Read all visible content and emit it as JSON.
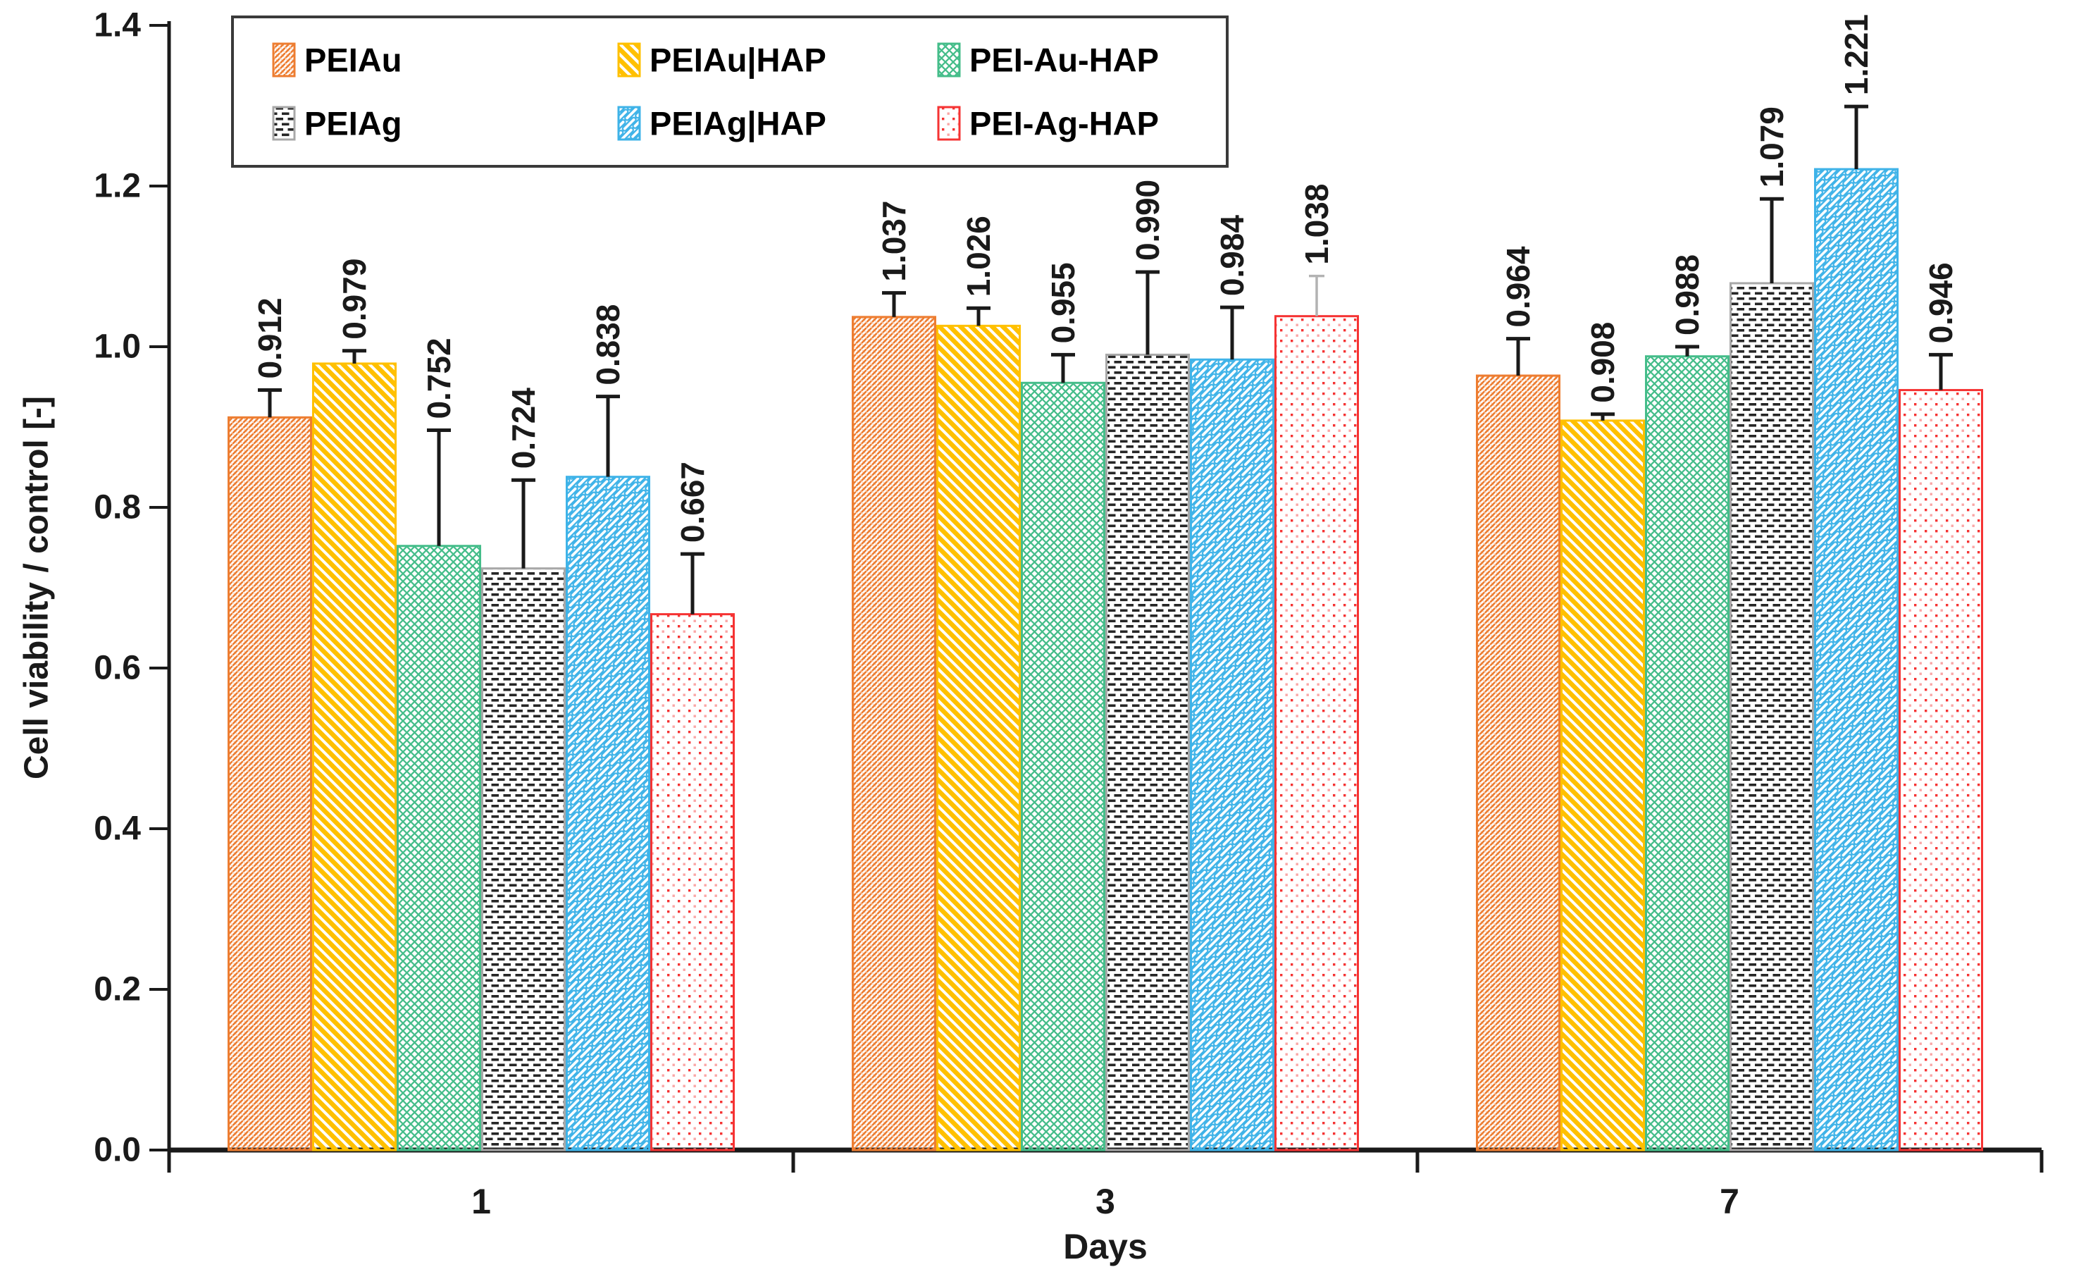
{
  "figure": {
    "background": "#ffffff",
    "axis_color": "#1a1a1a",
    "legend_border_color": "#3a3a3a"
  },
  "chart_data": {
    "type": "bar",
    "title": "",
    "xlabel": "Days",
    "ylabel": "Cell viability / control [-]",
    "ylim": [
      0.0,
      1.4
    ],
    "ytick_step": 0.2,
    "yticks": [
      "0.0",
      "0.2",
      "0.4",
      "0.6",
      "0.8",
      "1.0",
      "1.2",
      "1.4"
    ],
    "grid": false,
    "legend_position": "top, boxed, 2 rows x 3 columns",
    "value_label_format": "0.000",
    "value_labels_rotated": true,
    "error_bars": "upper only",
    "error_color_default": "#1a1a1a",
    "categories": [
      "1",
      "3",
      "7"
    ],
    "series": [
      {
        "name": "PEIAu",
        "color": "#ED7D31",
        "pattern": "fine-diagonal",
        "values": [
          0.912,
          1.037,
          0.964
        ],
        "errors": [
          0.034,
          0.03,
          0.046
        ]
      },
      {
        "name": "PEIAu|HAP",
        "color": "#FFC000",
        "pattern": "wide-diagonal",
        "values": [
          0.979,
          1.026,
          0.908
        ],
        "errors": [
          0.016,
          0.022,
          0.008
        ]
      },
      {
        "name": "PEI-Au-HAP",
        "color": "#45BD8A",
        "pattern": "diamond-crosshatch",
        "values": [
          0.752,
          0.955,
          0.988
        ],
        "errors": [
          0.144,
          0.035,
          0.012
        ]
      },
      {
        "name": "PEIAg",
        "color": "#262626",
        "outline": "#A8A8A8",
        "pattern": "dashed-rows",
        "values": [
          0.724,
          0.99,
          1.079
        ],
        "errors": [
          0.11,
          0.103,
          0.105
        ]
      },
      {
        "name": "PEIAg|HAP",
        "color": "#3FB3E8",
        "pattern": "diagonal-brick",
        "values": [
          0.838,
          0.984,
          1.221
        ],
        "errors": [
          0.1,
          0.065,
          0.078
        ]
      },
      {
        "name": "PEI-Ag-HAP",
        "color": "#F53333",
        "pattern_secondary": "#F9A6A6",
        "pattern": "dots",
        "values": [
          0.667,
          1.038,
          0.946
        ],
        "errors": [
          0.075,
          0.05,
          0.044
        ],
        "error_colors": [
          "#1a1a1a",
          "#b3b3b3",
          "#1a1a1a"
        ]
      }
    ]
  }
}
